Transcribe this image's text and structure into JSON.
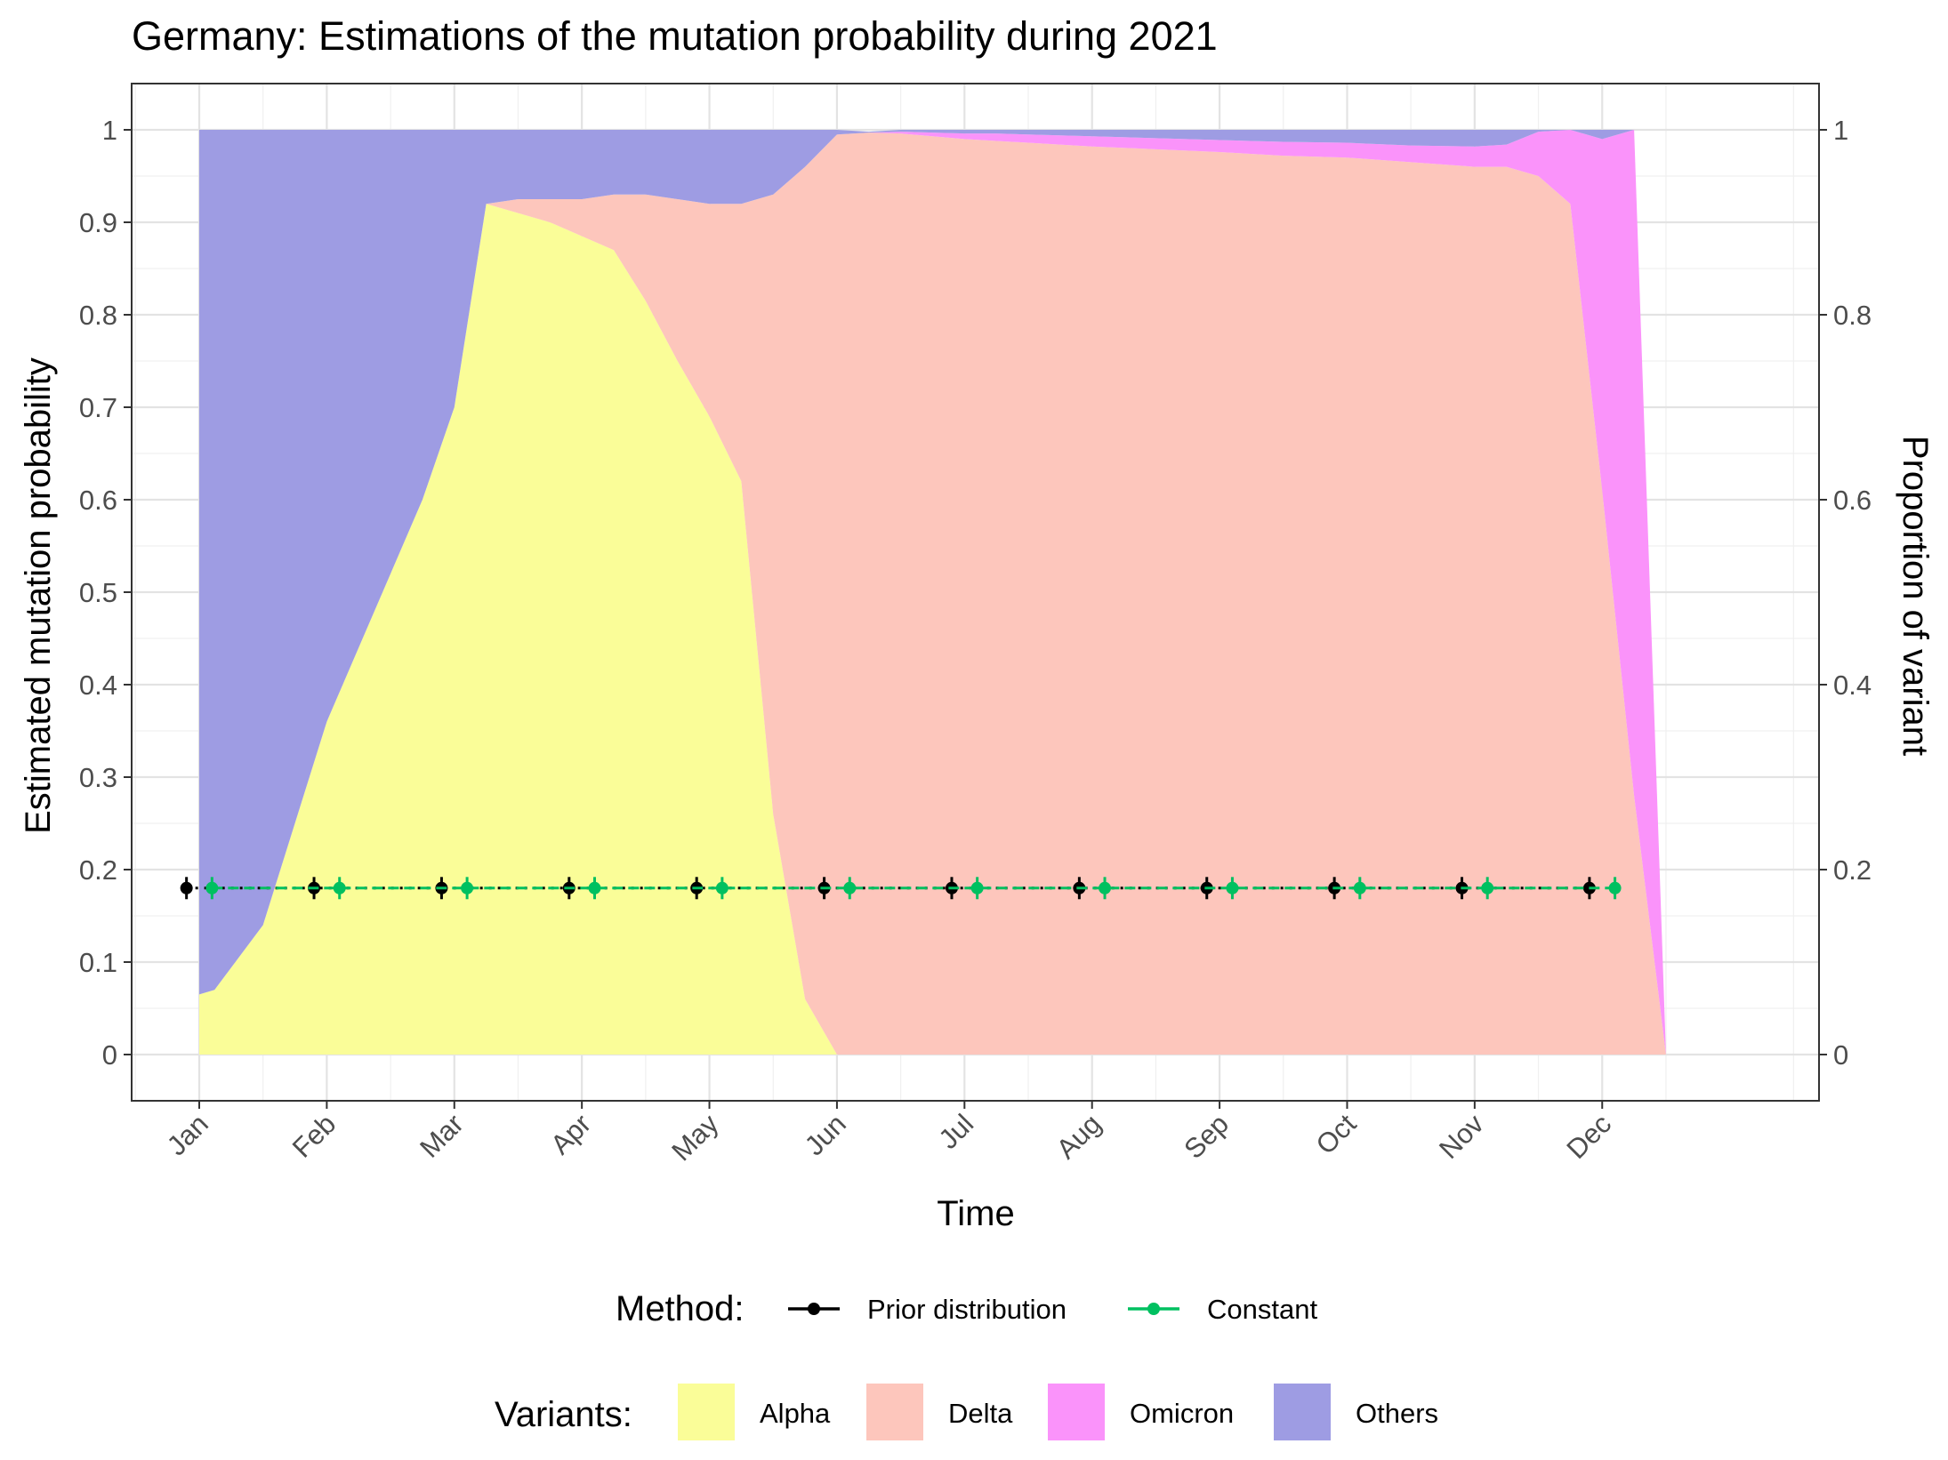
{
  "chart_data": {
    "type": "area",
    "title": "Germany: Estimations of the mutation probability during 2021",
    "xlabel": "Time",
    "ylabel": "Estimated mutation probability",
    "y2label": "Proportion of variant",
    "ylim": [
      -0.05,
      1.05
    ],
    "y_ticks": [
      "0",
      "0.1",
      "0.2",
      "0.3",
      "0.4",
      "0.5",
      "0.6",
      "0.7",
      "0.8",
      "0.9",
      "1"
    ],
    "y2_ticks": [
      "0",
      "0.2",
      "0.4",
      "0.6",
      "0.8",
      "1"
    ],
    "x_ticks": [
      "Jan",
      "Feb",
      "Mar",
      "Apr",
      "May",
      "Jun",
      "Jul",
      "Aug",
      "Sep",
      "Oct",
      "Nov",
      "Dec"
    ],
    "xlim_months": [
      -0.53,
      12.7
    ],
    "grid": true,
    "legend_position": "bottom",
    "x": [
      0,
      0.12,
      0.5,
      0.75,
      1.0,
      1.25,
      1.5,
      1.75,
      2.0,
      2.25,
      2.5,
      2.75,
      3.0,
      3.25,
      3.5,
      3.75,
      4.0,
      4.25,
      4.5,
      4.75,
      5.0,
      5.25,
      5.5,
      5.75,
      6.0,
      6.25,
      6.5,
      6.75,
      7.0,
      7.5,
      8.0,
      8.5,
      9.0,
      9.5,
      10.0,
      10.25,
      10.5,
      10.75,
      11.0,
      11.25,
      11.5,
      11.75,
      12.0
    ],
    "variant_series": [
      {
        "name": "Alpha",
        "color": "#FAFD98",
        "values": [
          0.065,
          0.07,
          0.14,
          0.25,
          0.36,
          0.44,
          0.52,
          0.6,
          0.7,
          0.92,
          0.91,
          0.9,
          0.885,
          0.87,
          0.815,
          0.75,
          0.69,
          0.62,
          0.26,
          0.06,
          0.0,
          0.0,
          0.0,
          0.0,
          0.0,
          0.0,
          0.0,
          0.0,
          0.0,
          0.0,
          0.0,
          0.0,
          0.0,
          0.0,
          0.0,
          0.0,
          0.0,
          0.0,
          0.0,
          0.0,
          0.0,
          0.0,
          0.0
        ]
      },
      {
        "name": "Delta",
        "color": "#FDC6BC",
        "values": [
          0.0,
          0.0,
          0.0,
          0.0,
          0.0,
          0.0,
          0.0,
          0.0,
          0.0,
          0.0,
          0.015,
          0.025,
          0.04,
          0.06,
          0.115,
          0.175,
          0.23,
          0.3,
          0.67,
          0.9,
          0.995,
          0.997,
          0.996,
          0.993,
          0.99,
          0.988,
          0.986,
          0.984,
          0.982,
          0.979,
          0.976,
          0.972,
          0.97,
          0.965,
          0.96,
          0.96,
          0.95,
          0.92,
          0.61,
          0.28,
          0.0,
          0.0,
          0.0
        ]
      },
      {
        "name": "Omicron",
        "color": "#FA93FA",
        "values": [
          0.0,
          0.0,
          0.0,
          0.0,
          0.0,
          0.0,
          0.0,
          0.0,
          0.0,
          0.0,
          0.0,
          0.0,
          0.0,
          0.0,
          0.0,
          0.0,
          0.0,
          0.0,
          0.0,
          0.0,
          0.0,
          0.0,
          0.002,
          0.004,
          0.006,
          0.008,
          0.009,
          0.01,
          0.011,
          0.012,
          0.013,
          0.015,
          0.016,
          0.018,
          0.022,
          0.024,
          0.048,
          0.08,
          0.38,
          0.72,
          0.0,
          0.0,
          0.0
        ]
      },
      {
        "name": "Others",
        "color": "#9E9CE3",
        "values": [
          0.935,
          0.93,
          0.86,
          0.75,
          0.64,
          0.56,
          0.48,
          0.4,
          0.3,
          0.08,
          0.075,
          0.075,
          0.075,
          0.07,
          0.07,
          0.075,
          0.08,
          0.08,
          0.07,
          0.04,
          0.005,
          0.001,
          0.002,
          0.003,
          0.004,
          0.004,
          0.005,
          0.006,
          0.007,
          0.009,
          0.011,
          0.013,
          0.014,
          0.017,
          0.018,
          0.016,
          0.002,
          0.0,
          0.01,
          0.0,
          0.0,
          0.0,
          0.0
        ]
      }
    ],
    "method_series": [
      {
        "name": "Prior distribution",
        "color": "#000000",
        "linestyle": "dotted",
        "x": [
          -0.1,
          0.9,
          1.9,
          2.9,
          3.9,
          4.9,
          5.9,
          6.9,
          7.9,
          8.9,
          9.9,
          10.9
        ],
        "y": [
          0.18,
          0.18,
          0.18,
          0.18,
          0.18,
          0.18,
          0.18,
          0.18,
          0.18,
          0.18,
          0.18,
          0.18
        ],
        "err": [
          0.012,
          0.012,
          0.012,
          0.012,
          0.012,
          0.012,
          0.012,
          0.012,
          0.012,
          0.012,
          0.012,
          0.012
        ]
      },
      {
        "name": "Constant",
        "color": "#00C060",
        "linestyle": "dashed",
        "x": [
          0.1,
          1.1,
          2.1,
          3.1,
          4.1,
          5.1,
          6.1,
          7.1,
          8.1,
          9.1,
          10.1,
          11.1
        ],
        "y": [
          0.18,
          0.18,
          0.18,
          0.18,
          0.18,
          0.18,
          0.18,
          0.18,
          0.18,
          0.18,
          0.18,
          0.18
        ],
        "err": [
          0.012,
          0.012,
          0.012,
          0.012,
          0.012,
          0.012,
          0.012,
          0.012,
          0.012,
          0.012,
          0.012,
          0.012
        ]
      }
    ],
    "legend": {
      "method_title": "Method:",
      "variants_title": "Variants:"
    }
  }
}
